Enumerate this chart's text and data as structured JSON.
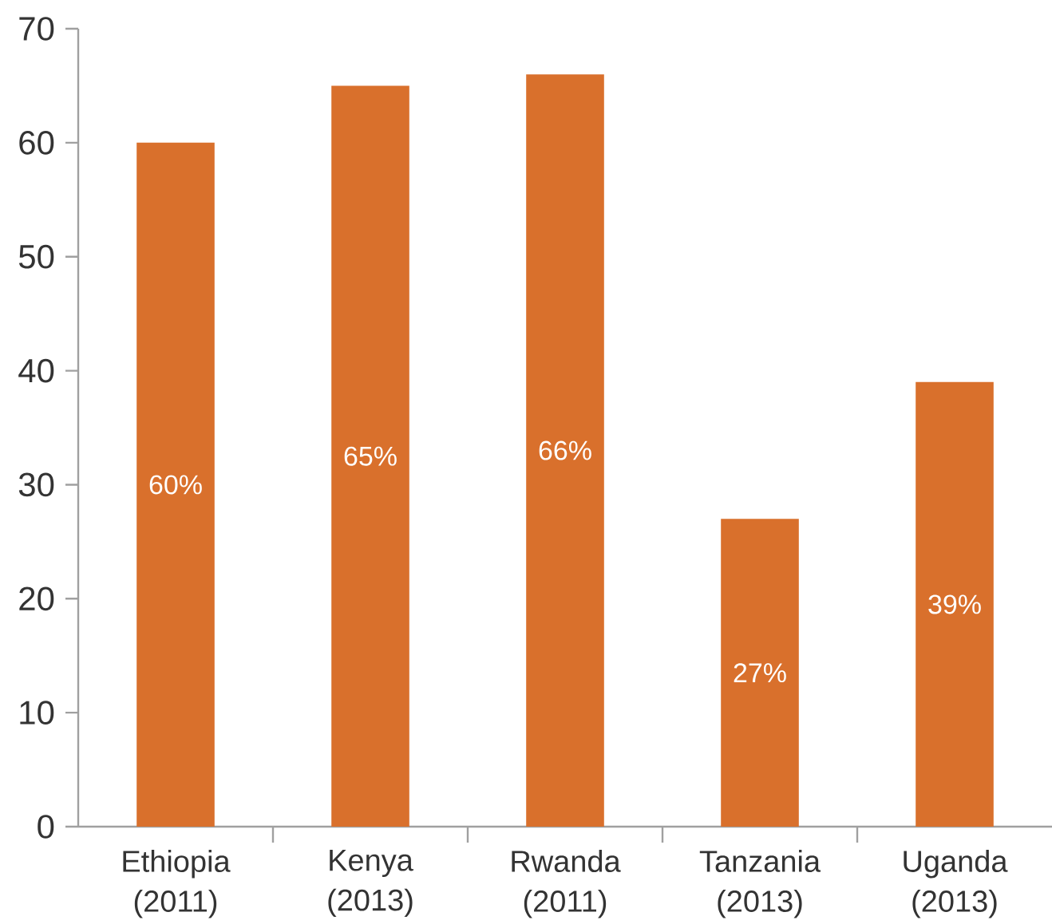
{
  "chart_data": {
    "type": "bar",
    "categories": [
      "Ethiopia (2011)",
      "Kenya (2013)",
      "Rwanda (2011)",
      "Tanzania (2013)",
      "Uganda (2013)"
    ],
    "values": [
      60,
      65,
      66,
      27,
      39
    ],
    "value_labels": [
      "60%",
      "65%",
      "66%",
      "27%",
      "39%"
    ],
    "color": "#d9702c",
    "ylim": [
      0,
      70
    ],
    "yticks": [
      0,
      10,
      20,
      30,
      40,
      50,
      60,
      70
    ]
  }
}
